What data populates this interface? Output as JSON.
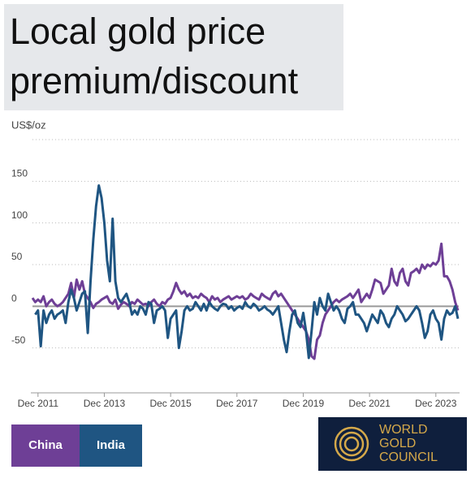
{
  "chart_data": {
    "type": "line",
    "title_lines": [
      "Local gold price",
      "premium/discount"
    ],
    "y_label": "US$/oz",
    "x": [
      "2011-10",
      "2011-11",
      "2011-12",
      "2012-01",
      "2012-02",
      "2012-03",
      "2012-04",
      "2012-05",
      "2012-06",
      "2012-07",
      "2012-08",
      "2012-09",
      "2012-10",
      "2012-11",
      "2012-12",
      "2013-01",
      "2013-02",
      "2013-03",
      "2013-04",
      "2013-05",
      "2013-06",
      "2013-07",
      "2013-08",
      "2013-09",
      "2013-10",
      "2013-11",
      "2013-12",
      "2014-01",
      "2014-02",
      "2014-03",
      "2014-04",
      "2014-05",
      "2014-06",
      "2014-07",
      "2014-08",
      "2014-09",
      "2014-10",
      "2014-11",
      "2014-12",
      "2015-01",
      "2015-02",
      "2015-03",
      "2015-04",
      "2015-05",
      "2015-06",
      "2015-07",
      "2015-08",
      "2015-09",
      "2015-10",
      "2015-11",
      "2015-12",
      "2016-01",
      "2016-02",
      "2016-03",
      "2016-04",
      "2016-05",
      "2016-06",
      "2016-07",
      "2016-08",
      "2016-09",
      "2016-10",
      "2016-11",
      "2016-12",
      "2017-01",
      "2017-02",
      "2017-03",
      "2017-04",
      "2017-05",
      "2017-06",
      "2017-07",
      "2017-08",
      "2017-09",
      "2017-10",
      "2017-11",
      "2017-12",
      "2018-01",
      "2018-02",
      "2018-03",
      "2018-04",
      "2018-05",
      "2018-06",
      "2018-07",
      "2018-08",
      "2018-09",
      "2018-10",
      "2018-11",
      "2018-12",
      "2019-01",
      "2019-02",
      "2019-03",
      "2019-04",
      "2019-05",
      "2019-06",
      "2019-07",
      "2019-08",
      "2019-09",
      "2019-10",
      "2019-11",
      "2019-12",
      "2020-01",
      "2020-02",
      "2020-03",
      "2020-04",
      "2020-05",
      "2020-06",
      "2020-07",
      "2020-08",
      "2020-09",
      "2020-10",
      "2020-11",
      "2020-12",
      "2021-01",
      "2021-02",
      "2021-03",
      "2021-04",
      "2021-05",
      "2021-06",
      "2021-07",
      "2021-08",
      "2021-09",
      "2021-10",
      "2021-11",
      "2021-12",
      "2022-01",
      "2022-02",
      "2022-03",
      "2022-04",
      "2022-05",
      "2022-06",
      "2022-07",
      "2022-08",
      "2022-09",
      "2022-10",
      "2022-11",
      "2022-12",
      "2023-01",
      "2023-02",
      "2023-03",
      "2023-04",
      "2023-05",
      "2023-06",
      "2023-07",
      "2023-08",
      "2023-09",
      "2023-10",
      "2023-11",
      "2023-12",
      "2024-01",
      "2024-02",
      "2024-03",
      "2024-04",
      "2024-05",
      "2024-06",
      "2024-07",
      "2024-08"
    ],
    "series": [
      {
        "name": "China",
        "color": "#6e3f96",
        "values": [
          10,
          5,
          8,
          5,
          12,
          0,
          5,
          8,
          3,
          0,
          2,
          5,
          10,
          15,
          28,
          10,
          32,
          20,
          30,
          15,
          10,
          5,
          -2,
          3,
          5,
          8,
          10,
          12,
          5,
          3,
          8,
          -3,
          2,
          5,
          3,
          0,
          5,
          3,
          8,
          5,
          2,
          3,
          0,
          5,
          8,
          3,
          0,
          5,
          3,
          8,
          10,
          18,
          28,
          20,
          15,
          18,
          12,
          15,
          10,
          12,
          10,
          15,
          12,
          10,
          5,
          12,
          8,
          10,
          5,
          8,
          10,
          12,
          8,
          10,
          12,
          10,
          12,
          8,
          10,
          15,
          12,
          10,
          8,
          15,
          12,
          10,
          8,
          15,
          18,
          12,
          15,
          10,
          5,
          0,
          -5,
          -10,
          -15,
          -20,
          -25,
          -30,
          -40,
          -60,
          -63,
          -40,
          -35,
          -20,
          -10,
          -5,
          0,
          5,
          8,
          5,
          8,
          10,
          12,
          15,
          10,
          15,
          20,
          5,
          10,
          15,
          10,
          20,
          32,
          30,
          28,
          15,
          20,
          25,
          45,
          30,
          25,
          40,
          45,
          30,
          25,
          40,
          42,
          45,
          40,
          50,
          45,
          50,
          48,
          52,
          50,
          55,
          75,
          36,
          36,
          30,
          20,
          5,
          -5
        ]
      },
      {
        "name": "India",
        "color": "#1f5582",
        "values": [
          null,
          -10,
          -5,
          -48,
          -5,
          -20,
          -10,
          -5,
          -15,
          -10,
          -8,
          -5,
          -20,
          5,
          20,
          10,
          -5,
          5,
          15,
          18,
          -32,
          30,
          80,
          120,
          145,
          130,
          100,
          55,
          30,
          105,
          30,
          10,
          5,
          10,
          15,
          5,
          -10,
          -5,
          -10,
          0,
          -3,
          -10,
          5,
          3,
          -20,
          -5,
          -3,
          0,
          -5,
          -38,
          -15,
          -10,
          -5,
          -50,
          -30,
          -5,
          0,
          -5,
          -3,
          5,
          0,
          -5,
          3,
          -5,
          5,
          0,
          -3,
          -5,
          0,
          3,
          2,
          -3,
          0,
          -5,
          -2,
          0,
          -3,
          5,
          0,
          -2,
          3,
          0,
          -5,
          -3,
          0,
          -4,
          -6,
          -10,
          -5,
          0,
          -20,
          -40,
          -55,
          -30,
          -10,
          -5,
          -20,
          -25,
          -8,
          -30,
          -62,
          -30,
          5,
          -10,
          10,
          0,
          -5,
          15,
          5,
          -5,
          0,
          -5,
          -15,
          -20,
          -3,
          0,
          5,
          -10,
          -10,
          -15,
          -20,
          -30,
          -20,
          -10,
          -15,
          -20,
          -5,
          -10,
          -20,
          -25,
          -15,
          -10,
          0,
          -5,
          -10,
          -18,
          -15,
          -10,
          -5,
          0,
          -5,
          -20,
          -38,
          -30,
          -10,
          -5,
          -15,
          -20,
          -40,
          -15,
          -5,
          -10,
          -8,
          0,
          -15
        ]
      }
    ],
    "xlim": [
      "2011-10",
      "2024-08"
    ],
    "xticks": [
      {
        "value": "2011-12",
        "label": "Dec 2011"
      },
      {
        "value": "2013-12",
        "label": "Dec 2013"
      },
      {
        "value": "2015-12",
        "label": "Dec 2015"
      },
      {
        "value": "2017-12",
        "label": "Dec 2017"
      },
      {
        "value": "2019-12",
        "label": "Dec 2019"
      },
      {
        "value": "2021-12",
        "label": "Dec 2021"
      },
      {
        "value": "2023-12",
        "label": "Dec 2023"
      }
    ],
    "ylim": [
      -100,
      200
    ],
    "yticks": [
      -50,
      0,
      50,
      100,
      150
    ],
    "grid": true,
    "legend": "bottom-left",
    "logo": [
      "WORLD",
      "GOLD",
      "COUNCIL"
    ]
  }
}
